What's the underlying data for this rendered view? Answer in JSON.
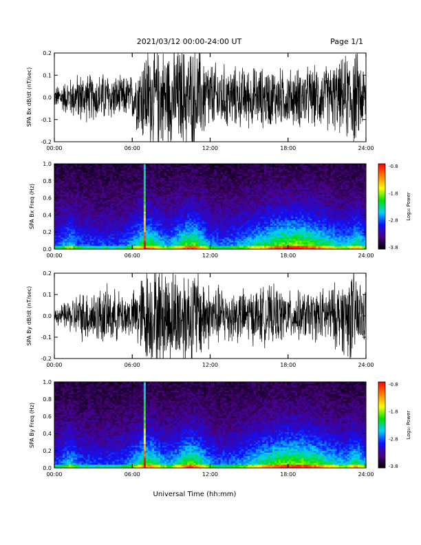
{
  "header": {
    "date_range": "2021/03/12  00:00-24:00 UT",
    "page": "Page 1/1"
  },
  "xaxis": {
    "label": "Universal Time (hh:mm)",
    "tick_labels": [
      "00:00",
      "06:00",
      "12:00",
      "18:00",
      "24:00"
    ]
  },
  "colorbar": {
    "label": "Log₁₀ Power",
    "tick_labels": [
      "-0.8",
      "-1.8",
      "-2.8",
      "-3.8"
    ],
    "colors": [
      "#000000",
      "#4a0080",
      "#1010ff",
      "#00d0ff",
      "#00e000",
      "#ffff00",
      "#ff8000",
      "#ff0000"
    ]
  },
  "chart_data": [
    {
      "type": "line",
      "ylabel": "SPA Bx dB/dt (nT/sec)",
      "xlim": [
        0,
        24
      ],
      "ylim": [
        -0.2,
        0.2
      ],
      "yticks": [
        "-0.2",
        "-0.1",
        "0.0",
        "0.1",
        "0.2"
      ],
      "color": "#000000",
      "envelope_hours": [
        0,
        1,
        2,
        3,
        4,
        5,
        6,
        7,
        8,
        9,
        10,
        11,
        12,
        13,
        14,
        15,
        16,
        17,
        18,
        19,
        20,
        21,
        22,
        23,
        24
      ],
      "envelope_amplitude": [
        0.04,
        0.07,
        0.1,
        0.09,
        0.1,
        0.08,
        0.09,
        0.2,
        0.2,
        0.2,
        0.2,
        0.2,
        0.14,
        0.13,
        0.12,
        0.12,
        0.12,
        0.12,
        0.11,
        0.12,
        0.12,
        0.13,
        0.14,
        0.2,
        0.12
      ]
    },
    {
      "type": "heatmap",
      "ylabel": "SPA Bx Freq (Hz)",
      "xlim": [
        0,
        24
      ],
      "ylim": [
        0,
        1.0
      ],
      "yticks": [
        "0.0",
        "0.2",
        "0.4",
        "0.6",
        "0.8",
        "1.0"
      ],
      "zlim": [
        -3.8,
        -0.8
      ],
      "bright_band_hour": 7.0
    },
    {
      "type": "line",
      "ylabel": "SPA By dB/dt (nT/sec)",
      "xlim": [
        0,
        24
      ],
      "ylim": [
        -0.2,
        0.2
      ],
      "yticks": [
        "-0.2",
        "-0.1",
        "0.0",
        "0.1",
        "0.2"
      ],
      "color": "#000000",
      "envelope_hours": [
        0,
        1,
        2,
        3,
        4,
        5,
        6,
        7,
        8,
        9,
        10,
        11,
        12,
        13,
        14,
        15,
        16,
        17,
        18,
        19,
        20,
        21,
        22,
        23,
        24
      ],
      "envelope_amplitude": [
        0.03,
        0.06,
        0.1,
        0.11,
        0.12,
        0.1,
        0.09,
        0.2,
        0.2,
        0.2,
        0.2,
        0.2,
        0.13,
        0.12,
        0.11,
        0.11,
        0.12,
        0.12,
        0.1,
        0.1,
        0.1,
        0.12,
        0.14,
        0.2,
        0.1
      ]
    },
    {
      "type": "heatmap",
      "ylabel": "SPA By Freq (Hz)",
      "xlim": [
        0,
        24
      ],
      "ylim": [
        0,
        1.0
      ],
      "yticks": [
        "0.0",
        "0.2",
        "0.4",
        "0.6",
        "0.8",
        "1.0"
      ],
      "zlim": [
        -3.8,
        -0.8
      ],
      "bright_band_hour": 7.0
    }
  ]
}
